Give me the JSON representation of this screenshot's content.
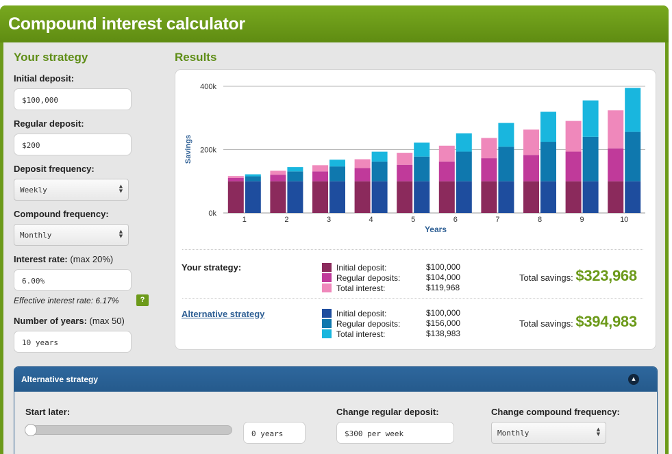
{
  "app": {
    "title": "Compound interest calculator"
  },
  "strategy": {
    "heading": "Your strategy",
    "initial_deposit": {
      "label": "Initial deposit:",
      "value": "$100,000"
    },
    "regular_deposit": {
      "label": "Regular deposit:",
      "value": "$200"
    },
    "deposit_frequency": {
      "label": "Deposit frequency:",
      "value": "Weekly"
    },
    "compound_frequency": {
      "label": "Compound frequency:",
      "value": "Monthly"
    },
    "interest_rate": {
      "label": "Interest rate:",
      "note": "(max 20%)",
      "value": "6.00%"
    },
    "effective_rate": "Effective interest rate: 6.17%",
    "help_label": "?",
    "years": {
      "label": "Number of years:",
      "note": "(max 50)",
      "value": "10 years"
    }
  },
  "results": {
    "heading": "Results",
    "your_strategy": {
      "label": "Your strategy:",
      "rows": [
        {
          "label": "Initial deposit:",
          "value": "$100,000",
          "color": "#8b2a5c"
        },
        {
          "label": "Regular deposits:",
          "value": "$104,000",
          "color": "#c03a9a"
        },
        {
          "label": "Total interest:",
          "value": "$119,968",
          "color": "#ef88bb"
        }
      ],
      "total_label": "Total savings:",
      "total_value": "$323,968"
    },
    "alternative_strategy": {
      "label": "Alternative strategy",
      "rows": [
        {
          "label": "Initial deposit:",
          "value": "$100,000",
          "color": "#1e4d9e"
        },
        {
          "label": "Regular deposits:",
          "value": "$156,000",
          "color": "#0f78ae"
        },
        {
          "label": "Total interest:",
          "value": "$138,983",
          "color": "#19b6de"
        }
      ],
      "total_label": "Total savings:",
      "total_value": "$394,983"
    }
  },
  "chart_data": {
    "type": "bar",
    "stacked": true,
    "xlabel": "Years",
    "ylabel": "Savings",
    "categories": [
      "1",
      "2",
      "3",
      "4",
      "5",
      "6",
      "7",
      "8",
      "9",
      "10"
    ],
    "y_ticks": [
      "0k",
      "200k",
      "400k"
    ],
    "ylim": [
      0,
      400000
    ],
    "grid": true,
    "groups": [
      {
        "name": "Your strategy",
        "colors": [
          "#8b2a5c",
          "#c03a9a",
          "#ef88bb"
        ],
        "initial": [
          100000,
          100000,
          100000,
          100000,
          100000,
          100000,
          100000,
          100000,
          100000,
          100000
        ],
        "regular": [
          10400,
          20800,
          31200,
          41600,
          52000,
          62400,
          72800,
          83200,
          93600,
          104000
        ],
        "interest": [
          6000,
          12500,
          19500,
          28000,
          38000,
          50000,
          64000,
          80000,
          97000,
          119968
        ]
      },
      {
        "name": "Alternative strategy",
        "colors": [
          "#1e4d9e",
          "#0f78ae",
          "#19b6de"
        ],
        "initial": [
          100000,
          100000,
          100000,
          100000,
          100000,
          100000,
          100000,
          100000,
          100000,
          100000
        ],
        "regular": [
          15600,
          31200,
          46800,
          62400,
          78000,
          93600,
          109200,
          124800,
          140400,
          156000
        ],
        "interest": [
          6500,
          13500,
          21500,
          31000,
          44000,
          58000,
          75000,
          95000,
          115000,
          138983
        ]
      }
    ]
  },
  "alternative_panel": {
    "heading": "Alternative strategy",
    "collapse_icon": "chevron-up-icon",
    "start_later": {
      "label": "Start later:",
      "value": "0 years",
      "slider_level": 0
    },
    "change_deposit": {
      "label": "Change regular deposit:",
      "value": "$300 per week"
    },
    "change_compound": {
      "label": "Change compound frequency:",
      "value": "Monthly"
    }
  }
}
